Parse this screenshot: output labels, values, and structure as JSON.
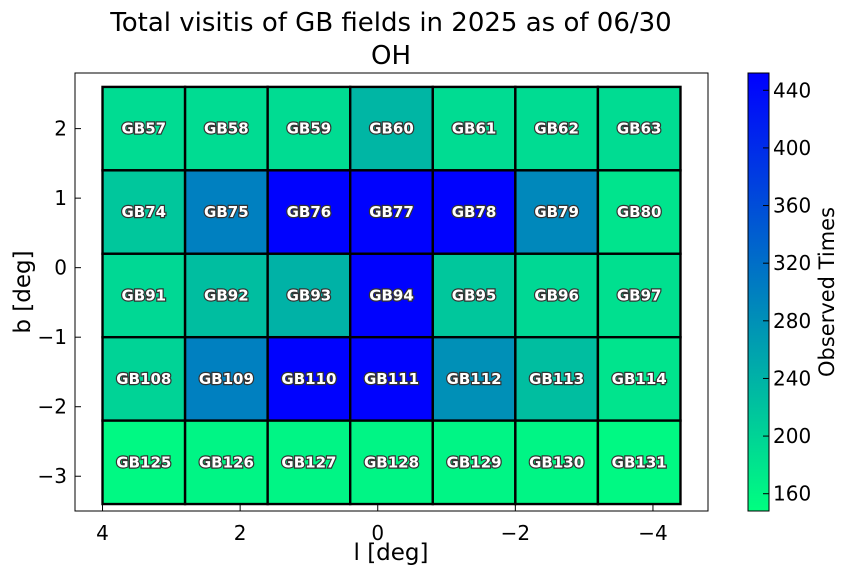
{
  "chart_data": {
    "type": "heatmap",
    "title": "Total visitis of GB fields in 2025 as of 06/30",
    "subtitle": "OH",
    "xlabel": "l [deg]",
    "ylabel": "b [deg]",
    "xlim": [
      4.4,
      -4.8
    ],
    "ylim": [
      -3.5,
      2.8
    ],
    "x_inverted": true,
    "xticks": [
      4,
      2,
      0,
      -2,
      -4
    ],
    "xtick_labels": [
      "4",
      "2",
      "0",
      "−2",
      "−4"
    ],
    "yticks": [
      2,
      1,
      0,
      -1,
      -2,
      -3
    ],
    "ytick_labels": [
      "2",
      "1",
      "0",
      "−1",
      "−2",
      "−3"
    ],
    "grid": false,
    "colorbar": {
      "label": "Observed Times",
      "range": [
        148,
        452
      ],
      "ticks": [
        160,
        200,
        240,
        280,
        320,
        360,
        400,
        440
      ],
      "tick_labels": [
        "160",
        "200",
        "240",
        "280",
        "320",
        "360",
        "400",
        "440"
      ],
      "cmap_low": "#00ff80",
      "cmap_high": "#0000ff"
    },
    "column_l_range": [
      4.0,
      -4.4
    ],
    "row_b_range": [
      2.6,
      -3.4
    ],
    "fields": [
      {
        "name": "GB57",
        "row": 0,
        "col": 0,
        "value": 190
      },
      {
        "name": "GB58",
        "row": 0,
        "col": 1,
        "value": 190
      },
      {
        "name": "GB59",
        "row": 0,
        "col": 2,
        "value": 190
      },
      {
        "name": "GB60",
        "row": 0,
        "col": 3,
        "value": 235
      },
      {
        "name": "GB61",
        "row": 0,
        "col": 4,
        "value": 190
      },
      {
        "name": "GB62",
        "row": 0,
        "col": 5,
        "value": 190
      },
      {
        "name": "GB63",
        "row": 0,
        "col": 6,
        "value": 190
      },
      {
        "name": "GB74",
        "row": 1,
        "col": 0,
        "value": 215
      },
      {
        "name": "GB75",
        "row": 1,
        "col": 1,
        "value": 300
      },
      {
        "name": "GB76",
        "row": 1,
        "col": 2,
        "value": 450
      },
      {
        "name": "GB77",
        "row": 1,
        "col": 3,
        "value": 450
      },
      {
        "name": "GB78",
        "row": 1,
        "col": 4,
        "value": 450
      },
      {
        "name": "GB79",
        "row": 1,
        "col": 5,
        "value": 290
      },
      {
        "name": "GB80",
        "row": 1,
        "col": 6,
        "value": 180
      },
      {
        "name": "GB91",
        "row": 2,
        "col": 0,
        "value": 195
      },
      {
        "name": "GB92",
        "row": 2,
        "col": 1,
        "value": 225
      },
      {
        "name": "GB93",
        "row": 2,
        "col": 2,
        "value": 240
      },
      {
        "name": "GB94",
        "row": 2,
        "col": 3,
        "value": 450
      },
      {
        "name": "GB95",
        "row": 2,
        "col": 4,
        "value": 215
      },
      {
        "name": "GB96",
        "row": 2,
        "col": 5,
        "value": 195
      },
      {
        "name": "GB97",
        "row": 2,
        "col": 6,
        "value": 185
      },
      {
        "name": "GB108",
        "row": 3,
        "col": 0,
        "value": 200
      },
      {
        "name": "GB109",
        "row": 3,
        "col": 1,
        "value": 300
      },
      {
        "name": "GB110",
        "row": 3,
        "col": 2,
        "value": 450
      },
      {
        "name": "GB111",
        "row": 3,
        "col": 3,
        "value": 450
      },
      {
        "name": "GB112",
        "row": 3,
        "col": 4,
        "value": 280
      },
      {
        "name": "GB113",
        "row": 3,
        "col": 5,
        "value": 225
      },
      {
        "name": "GB114",
        "row": 3,
        "col": 6,
        "value": 180
      },
      {
        "name": "GB125",
        "row": 4,
        "col": 0,
        "value": 155
      },
      {
        "name": "GB126",
        "row": 4,
        "col": 1,
        "value": 160
      },
      {
        "name": "GB127",
        "row": 4,
        "col": 2,
        "value": 160
      },
      {
        "name": "GB128",
        "row": 4,
        "col": 3,
        "value": 160
      },
      {
        "name": "GB129",
        "row": 4,
        "col": 4,
        "value": 160
      },
      {
        "name": "GB130",
        "row": 4,
        "col": 5,
        "value": 160
      },
      {
        "name": "GB131",
        "row": 4,
        "col": 6,
        "value": 155
      }
    ]
  }
}
